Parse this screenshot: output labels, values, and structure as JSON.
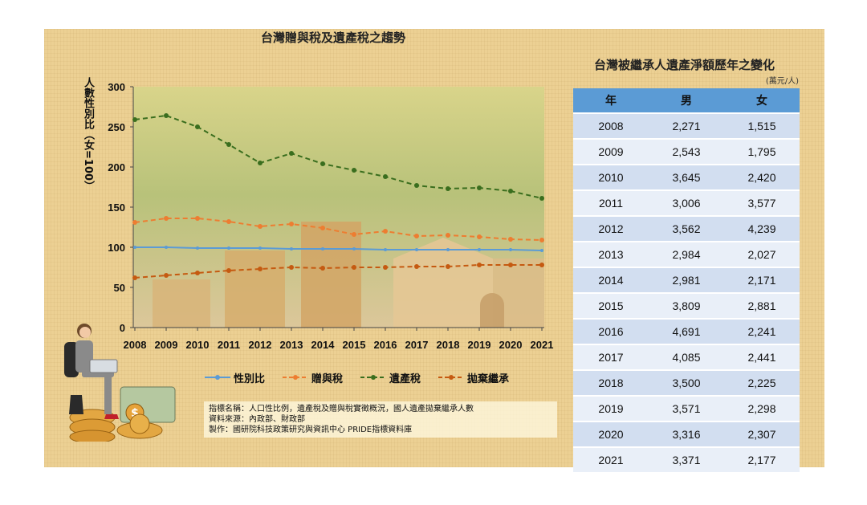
{
  "chart_data": {
    "type": "line",
    "title": "台灣贈與稅及遺產稅之趨勢",
    "ylabel": "人數性別比（女=100）",
    "xlabel": "",
    "x": [
      "2008",
      "2009",
      "2010",
      "2011",
      "2012",
      "2013",
      "2014",
      "2015",
      "2016",
      "2017",
      "2018",
      "2019",
      "2020",
      "2021"
    ],
    "ylim": [
      0,
      300
    ],
    "yticks": [
      "0",
      "50",
      "100",
      "150",
      "200",
      "250",
      "300"
    ],
    "grid": false,
    "legend_position": "bottom",
    "series": [
      {
        "name": "性別比",
        "color": "#5b9bd5",
        "style": "solid",
        "values": [
          100,
          100,
          99,
          99,
          99,
          98,
          98,
          98,
          97,
          97,
          97,
          97,
          97,
          96
        ]
      },
      {
        "name": "贈與稅",
        "color": "#ed7d31",
        "style": "dashed",
        "values": [
          131,
          136,
          136,
          132,
          126,
          129,
          124,
          116,
          120,
          114,
          115,
          113,
          110,
          109
        ]
      },
      {
        "name": "遺產稅",
        "color": "#3a6e1e",
        "style": "dashed",
        "values": [
          259,
          264,
          250,
          228,
          205,
          217,
          204,
          196,
          188,
          177,
          173,
          174,
          170,
          161
        ]
      },
      {
        "name": "拋棄繼承",
        "color": "#c55a11",
        "style": "dashed",
        "values": [
          62,
          65,
          68,
          71,
          73,
          75,
          74,
          75,
          75,
          76,
          76,
          78,
          78,
          78
        ]
      }
    ]
  },
  "notes": [
    "指標名稱：人口性比例，遺產稅及贈與稅實徵概況，國人遺產拋棄繼承人數",
    "資料來源：內政部、財政部",
    "製作：國研院科技政策研究與資訊中心  PRIDE指標資料庫"
  ],
  "table": {
    "title": "台灣被繼承人遺產淨額歷年之變化",
    "unit": "(萬元/人)",
    "headers": [
      "年",
      "男",
      "女"
    ],
    "rows": [
      [
        "2008",
        "2,271",
        "1,515"
      ],
      [
        "2009",
        "2,543",
        "1,795"
      ],
      [
        "2010",
        "3,645",
        "2,420"
      ],
      [
        "2011",
        "3,006",
        "3,577"
      ],
      [
        "2012",
        "3,562",
        "4,239"
      ],
      [
        "2013",
        "2,984",
        "2,027"
      ],
      [
        "2014",
        "2,981",
        "2,171"
      ],
      [
        "2015",
        "3,809",
        "2,881"
      ],
      [
        "2016",
        "4,691",
        "2,241"
      ],
      [
        "2017",
        "4,085",
        "2,441"
      ],
      [
        "2018",
        "3,500",
        "2,225"
      ],
      [
        "2019",
        "3,571",
        "2,298"
      ],
      [
        "2020",
        "3,316",
        "2,307"
      ],
      [
        "2021",
        "3,371",
        "2,177"
      ]
    ],
    "header_color": "#5b9bd5"
  },
  "decor": {
    "illustration": "woman-with-laptop-and-coins",
    "dollar_symbol": "$"
  }
}
